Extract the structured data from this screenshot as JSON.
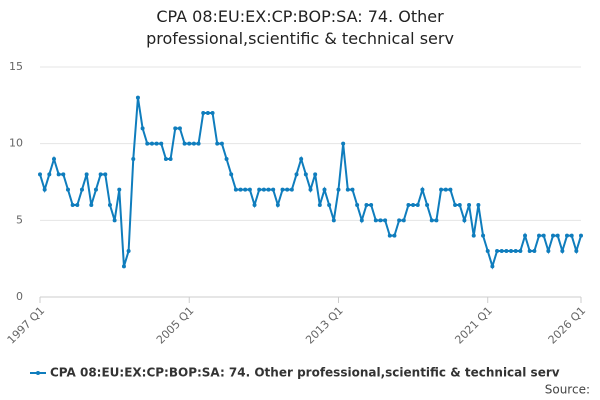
{
  "chart_data": {
    "type": "line",
    "title": "CPA 08:EU:EX:CP:BOP:SA: 74. Other professional,scientific & technical serv",
    "categories": [
      "1997 Q1",
      null,
      null,
      null,
      null,
      null,
      null,
      null,
      null,
      null,
      null,
      null,
      null,
      null,
      null,
      null,
      null,
      null,
      null,
      null,
      null,
      null,
      null,
      null,
      null,
      null,
      null,
      null,
      null,
      null,
      null,
      null,
      "2005 Q1",
      null,
      null,
      null,
      null,
      null,
      null,
      null,
      null,
      null,
      null,
      null,
      null,
      null,
      null,
      null,
      null,
      null,
      null,
      null,
      null,
      null,
      null,
      null,
      null,
      null,
      null,
      null,
      null,
      null,
      null,
      null,
      "2013 Q1",
      null,
      null,
      null,
      null,
      null,
      null,
      null,
      null,
      null,
      null,
      null,
      null,
      null,
      null,
      null,
      null,
      null,
      null,
      null,
      null,
      null,
      null,
      null,
      null,
      null,
      null,
      null,
      null,
      null,
      null,
      null,
      "2021 Q1",
      null,
      null,
      null,
      null,
      null,
      null,
      null,
      null,
      null,
      null,
      null,
      null,
      null,
      null,
      null,
      null,
      null,
      null,
      null,
      "2026 Q1"
    ],
    "series": [
      {
        "name": "CPA 08:EU:EX:CP:BOP:SA: 74. Other professional,scientific & technical serv",
        "color": "#0f7dbd",
        "values": [
          8,
          7,
          8,
          9,
          8,
          8,
          7,
          6,
          6,
          7,
          8,
          6,
          7,
          8,
          8,
          6,
          5,
          7,
          2,
          3,
          9,
          13,
          11,
          10,
          10,
          10,
          10,
          9,
          9,
          11,
          11,
          10,
          10,
          10,
          10,
          12,
          12,
          12,
          10,
          10,
          9,
          8,
          7,
          7,
          7,
          7,
          6,
          7,
          7,
          7,
          7,
          6,
          7,
          7,
          7,
          8,
          9,
          8,
          7,
          8,
          6,
          7,
          6,
          5,
          7,
          10,
          7,
          7,
          6,
          5,
          6,
          6,
          5,
          5,
          5,
          4,
          4,
          5,
          5,
          6,
          6,
          6,
          7,
          6,
          5,
          5,
          7,
          7,
          7,
          6,
          6,
          5,
          6,
          4,
          6,
          4,
          3,
          2,
          3,
          3,
          3,
          3,
          3,
          3,
          4,
          3,
          3,
          4,
          4,
          3,
          4,
          4,
          3,
          4,
          4,
          3,
          4
        ]
      }
    ],
    "ylim": [
      0,
      15
    ],
    "yticks": [
      0,
      5,
      10,
      15
    ],
    "grid": true,
    "source": "Source:"
  }
}
